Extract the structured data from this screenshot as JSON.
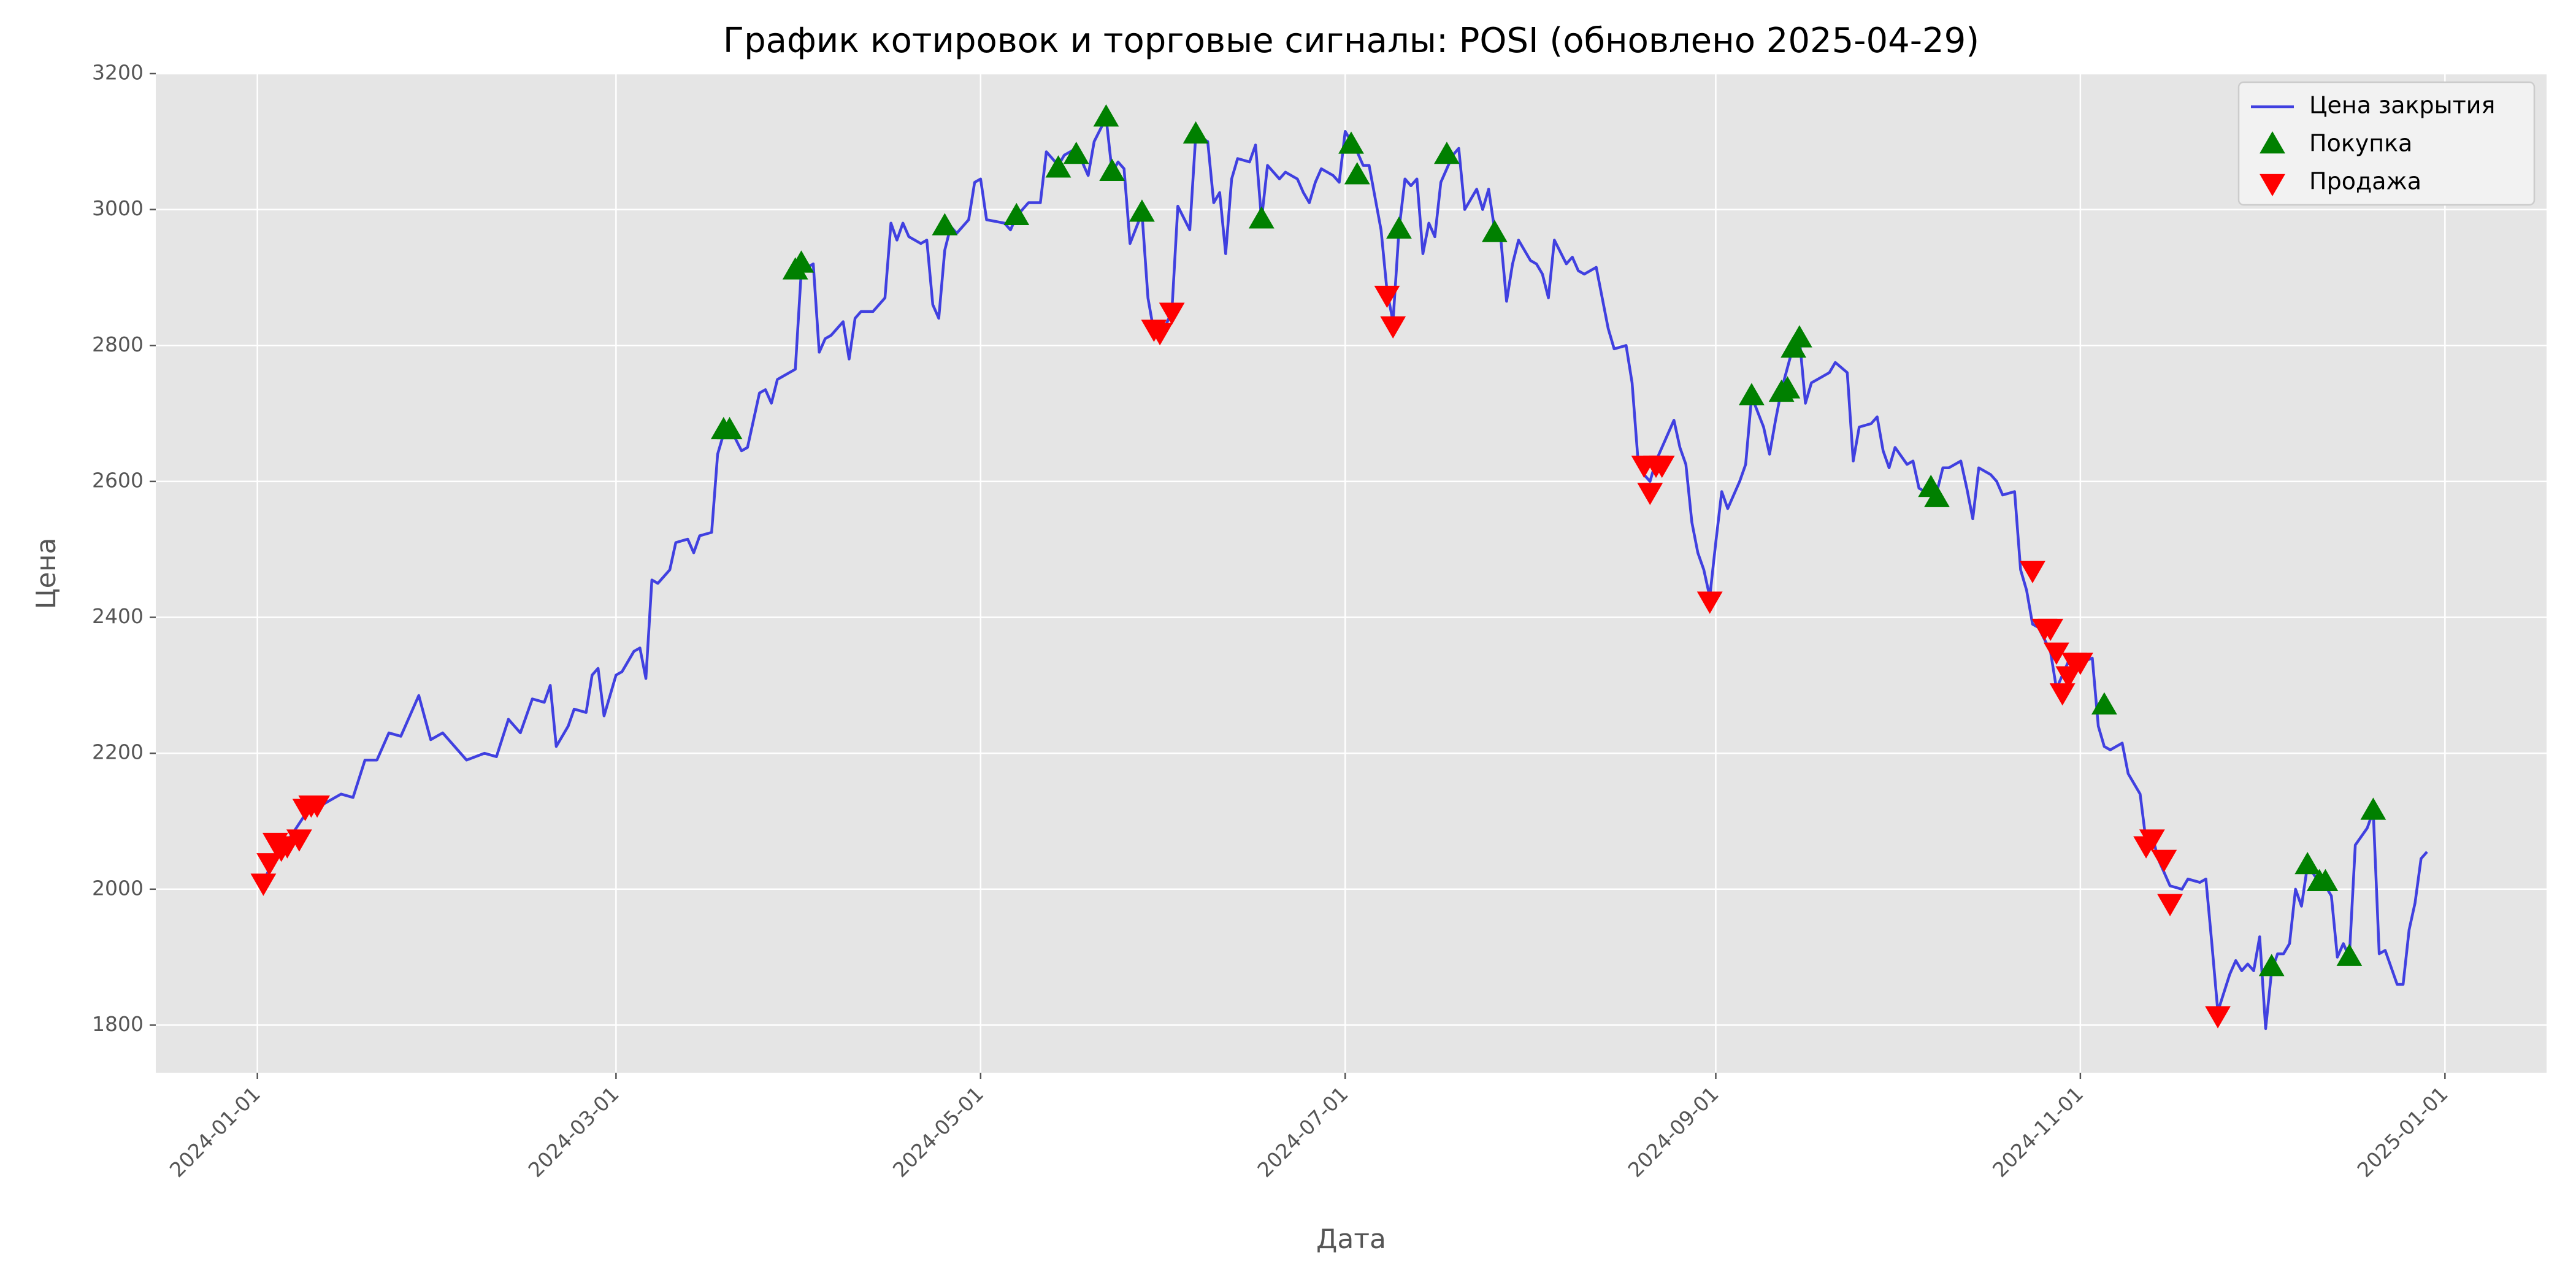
{
  "chart_data": {
    "type": "line",
    "title": "График котировок и торговые сигналы: POSI (обновлено 2025-04-29)",
    "x_label": "Дата",
    "y_label": "Цена",
    "xlim": [
      "2023-12-15",
      "2025-01-18"
    ],
    "xticks": [
      "2024-01-01",
      "2024-03-01",
      "2024-05-01",
      "2024-07-01",
      "2024-09-01",
      "2024-11-01",
      "2025-01-01"
    ],
    "ylim": [
      1730,
      3200
    ],
    "yticks": [
      1800,
      2000,
      2200,
      2400,
      2600,
      2800,
      3000,
      3200
    ],
    "grid": true,
    "legend": "upper right",
    "x": [
      "2024-01-02",
      "2024-01-04",
      "2024-01-06",
      "2024-01-09",
      "2024-01-12",
      "2024-01-15",
      "2024-01-17",
      "2024-01-19",
      "2024-01-21",
      "2024-01-23",
      "2024-01-25",
      "2024-01-27",
      "2024-01-28",
      "2024-01-30",
      "2024-02-01",
      "2024-02-03",
      "2024-02-05",
      "2024-02-08",
      "2024-02-10",
      "2024-02-12",
      "2024-02-14",
      "2024-02-16",
      "2024-02-18",
      "2024-02-19",
      "2024-02-20",
      "2024-02-22",
      "2024-02-23",
      "2024-02-25",
      "2024-02-26",
      "2024-02-27",
      "2024-02-28",
      "2024-03-01",
      "2024-03-02",
      "2024-03-04",
      "2024-03-05",
      "2024-03-06",
      "2024-03-07",
      "2024-03-08",
      "2024-03-10",
      "2024-03-11",
      "2024-03-13",
      "2024-03-14",
      "2024-03-15",
      "2024-03-17",
      "2024-03-18",
      "2024-03-19",
      "2024-03-20",
      "2024-03-22",
      "2024-03-23",
      "2024-03-25",
      "2024-03-26",
      "2024-03-27",
      "2024-03-28",
      "2024-03-30",
      "2024-03-31",
      "2024-04-01",
      "2024-04-03",
      "2024-04-04",
      "2024-04-05",
      "2024-04-06",
      "2024-04-08",
      "2024-04-09",
      "2024-04-10",
      "2024-04-11",
      "2024-04-13",
      "2024-04-15",
      "2024-04-16",
      "2024-04-17",
      "2024-04-18",
      "2024-04-19",
      "2024-04-21",
      "2024-04-22",
      "2024-04-23",
      "2024-04-24",
      "2024-04-25",
      "2024-04-26",
      "2024-04-27",
      "2024-04-29",
      "2024-04-30",
      "2024-05-01",
      "2024-05-02",
      "2024-05-05",
      "2024-05-06",
      "2024-05-07",
      "2024-05-09",
      "2024-05-11",
      "2024-05-12",
      "2024-05-14",
      "2024-05-15",
      "2024-05-17",
      "2024-05-19",
      "2024-05-20",
      "2024-05-22",
      "2024-05-23",
      "2024-05-24",
      "2024-05-25",
      "2024-05-26",
      "2024-05-28",
      "2024-05-29",
      "2024-05-30",
      "2024-05-31",
      "2024-06-01",
      "2024-06-02",
      "2024-06-03",
      "2024-06-05",
      "2024-06-06",
      "2024-06-08",
      "2024-06-09",
      "2024-06-10",
      "2024-06-11",
      "2024-06-12",
      "2024-06-13",
      "2024-06-15",
      "2024-06-16",
      "2024-06-17",
      "2024-06-18",
      "2024-06-20",
      "2024-06-21",
      "2024-06-23",
      "2024-06-24",
      "2024-06-25",
      "2024-06-26",
      "2024-06-27",
      "2024-06-29",
      "2024-06-30",
      "2024-07-01",
      "2024-07-03",
      "2024-07-04",
      "2024-07-05",
      "2024-07-07",
      "2024-07-08",
      "2024-07-09",
      "2024-07-10",
      "2024-07-11",
      "2024-07-12",
      "2024-07-13",
      "2024-07-14",
      "2024-07-15",
      "2024-07-16",
      "2024-07-17",
      "2024-07-19",
      "2024-07-20",
      "2024-07-21",
      "2024-07-23",
      "2024-07-24",
      "2024-07-25",
      "2024-07-26",
      "2024-07-27",
      "2024-07-28",
      "2024-07-29",
      "2024-07-30",
      "2024-08-01",
      "2024-08-02",
      "2024-08-03",
      "2024-08-04",
      "2024-08-05",
      "2024-08-07",
      "2024-08-08",
      "2024-08-09",
      "2024-08-10",
      "2024-08-12",
      "2024-08-13",
      "2024-08-14",
      "2024-08-15",
      "2024-08-17",
      "2024-08-18",
      "2024-08-19",
      "2024-08-20",
      "2024-08-21",
      "2024-08-22",
      "2024-08-24",
      "2024-08-25",
      "2024-08-26",
      "2024-08-27",
      "2024-08-28",
      "2024-08-29",
      "2024-08-30",
      "2024-08-31",
      "2024-09-01",
      "2024-09-02",
      "2024-09-03",
      "2024-09-05",
      "2024-09-06",
      "2024-09-07",
      "2024-09-09",
      "2024-09-10",
      "2024-09-11",
      "2024-09-12",
      "2024-09-14",
      "2024-09-15",
      "2024-09-16",
      "2024-09-17",
      "2024-09-18",
      "2024-09-20",
      "2024-09-21",
      "2024-09-23",
      "2024-09-24",
      "2024-09-25",
      "2024-09-27",
      "2024-09-28",
      "2024-09-29",
      "2024-09-30",
      "2024-10-01",
      "2024-10-03",
      "2024-10-04",
      "2024-10-05",
      "2024-10-07",
      "2024-10-08",
      "2024-10-09",
      "2024-10-10",
      "2024-10-12",
      "2024-10-13",
      "2024-10-14",
      "2024-10-15",
      "2024-10-17",
      "2024-10-18",
      "2024-10-19",
      "2024-10-21",
      "2024-10-22",
      "2024-10-23",
      "2024-10-24",
      "2024-10-25",
      "2024-10-27",
      "2024-10-28",
      "2024-10-29",
      "2024-10-30",
      "2024-10-31",
      "2024-11-03",
      "2024-11-04",
      "2024-11-05",
      "2024-11-06",
      "2024-11-08",
      "2024-11-09",
      "2024-11-11",
      "2024-11-12",
      "2024-11-13",
      "2024-11-14",
      "2024-11-16",
      "2024-11-18",
      "2024-11-19",
      "2024-11-21",
      "2024-11-22",
      "2024-11-23",
      "2024-11-24",
      "2024-11-26",
      "2024-11-27",
      "2024-11-28",
      "2024-11-29",
      "2024-11-30",
      "2024-12-01",
      "2024-12-02",
      "2024-12-03",
      "2024-12-04",
      "2024-12-05",
      "2024-12-06",
      "2024-12-07",
      "2024-12-08",
      "2024-12-09",
      "2024-12-11",
      "2024-12-12",
      "2024-12-13",
      "2024-12-14",
      "2024-12-15",
      "2024-12-16",
      "2024-12-17",
      "2024-12-19",
      "2024-12-20",
      "2024-12-21",
      "2024-12-22",
      "2024-12-24",
      "2024-12-25",
      "2024-12-26",
      "2024-12-27",
      "2024-12-28",
      "2024-12-29"
    ],
    "series": [
      {
        "name": "Цена закрытия",
        "type": "line",
        "color": "#4040e0",
        "values": [
          2010,
          2050,
          2070,
          2110,
          2125,
          2140,
          2135,
          2190,
          2190,
          2230,
          2225,
          2265,
          2285,
          2220,
          2230,
          2210,
          2190,
          2200,
          2195,
          2250,
          2230,
          2280,
          2275,
          2300,
          2210,
          2240,
          2265,
          2260,
          2315,
          2325,
          2255,
          2315,
          2320,
          2350,
          2355,
          2310,
          2455,
          2450,
          2470,
          2510,
          2515,
          2495,
          2520,
          2525,
          2640,
          2670,
          2680,
          2645,
          2650,
          2730,
          2735,
          2715,
          2750,
          2760,
          2765,
          2910,
          2920,
          2790,
          2810,
          2815,
          2835,
          2780,
          2840,
          2850,
          2850,
          2870,
          2980,
          2955,
          2980,
          2960,
          2950,
          2955,
          2860,
          2840,
          2940,
          2975,
          2965,
          2985,
          3040,
          3045,
          2985,
          2980,
          2970,
          2990,
          3010,
          3010,
          3085,
          3065,
          3080,
          3090,
          3050,
          3100,
          3135,
          3055,
          3070,
          3060,
          2950,
          2995,
          2870,
          2820,
          2805,
          2830,
          2850,
          3005,
          2970,
          3110,
          3100,
          3010,
          3025,
          2935,
          3045,
          3075,
          3070,
          3095,
          2985,
          3065,
          3045,
          3055,
          3045,
          3025,
          3010,
          3040,
          3060,
          3050,
          3040,
          3115,
          3085,
          3065,
          3065,
          2970,
          2880,
          2835,
          2970,
          3045,
          3035,
          3045,
          2935,
          2980,
          2960,
          3040,
          3080,
          3090,
          3000,
          3030,
          3000,
          3030,
          2970,
          2960,
          2865,
          2920,
          2955,
          2925,
          2920,
          2905,
          2870,
          2955,
          2920,
          2930,
          2910,
          2905,
          2915,
          2870,
          2825,
          2795,
          2800,
          2745,
          2630,
          2610,
          2600,
          2630,
          2670,
          2690,
          2650,
          2625,
          2540,
          2495,
          2470,
          2430,
          2510,
          2585,
          2560,
          2600,
          2625,
          2725,
          2680,
          2640,
          2690,
          2735,
          2800,
          2810,
          2715,
          2745,
          2750,
          2760,
          2775,
          2760,
          2630,
          2680,
          2685,
          2695,
          2645,
          2620,
          2650,
          2625,
          2630,
          2590,
          2580,
          2585,
          2620,
          2620,
          2630,
          2590,
          2545,
          2620,
          2610,
          2600,
          2580,
          2585,
          2470,
          2440,
          2390,
          2385,
          2350,
          2295,
          2315,
          2335,
          2330,
          2340,
          2240,
          2210,
          2205,
          2215,
          2170,
          2140,
          2070,
          2080,
          2045,
          2005,
          2000,
          2015,
          2010,
          2015,
          1920,
          1820,
          1875,
          1895,
          1880,
          1890,
          1880,
          1930,
          1795,
          1880,
          1905,
          1905,
          1920,
          2000,
          1975,
          2035,
          2010,
          2005,
          1990,
          1900,
          1920,
          1900,
          2065,
          2090,
          2115,
          1905,
          1910,
          1860,
          1860,
          1940,
          1980,
          2045,
          2055
        ]
      },
      {
        "name": "Покупка",
        "type": "scatter",
        "marker": "^",
        "color": "#008000",
        "x": [
          "2024-03-19",
          "2024-03-20",
          "2024-03-31",
          "2024-04-01",
          "2024-04-25",
          "2024-05-07",
          "2024-05-14",
          "2024-05-17",
          "2024-05-22",
          "2024-05-23",
          "2024-05-28",
          "2024-06-06",
          "2024-06-17",
          "2024-07-02",
          "2024-07-03",
          "2024-07-10",
          "2024-07-18",
          "2024-07-26",
          "2024-09-07",
          "2024-09-12",
          "2024-09-13",
          "2024-09-14",
          "2024-09-15",
          "2024-10-07",
          "2024-10-08",
          "2024-11-05",
          "2024-12-03",
          "2024-12-09",
          "2024-12-11",
          "2024-12-12",
          "2024-12-16",
          "2024-12-20"
        ],
        "values": [
          2675,
          2675,
          2910,
          2920,
          2975,
          2990,
          3060,
          3080,
          3135,
          3055,
          2995,
          3110,
          2985,
          3095,
          3050,
          2970,
          3080,
          2965,
          2725,
          2730,
          2735,
          2795,
          2810,
          2590,
          2575,
          2270,
          1885,
          2035,
          2010,
          2010,
          1900,
          2115
        ]
      },
      {
        "name": "Продажа",
        "type": "scatter",
        "marker": "v",
        "color": "#ff0000",
        "x": [
          "2024-01-02",
          "2024-01-03",
          "2024-01-04",
          "2024-01-05",
          "2024-01-06",
          "2024-01-08",
          "2024-01-09",
          "2024-01-10",
          "2024-01-11",
          "2024-05-30",
          "2024-05-31",
          "2024-06-02",
          "2024-07-08",
          "2024-07-09",
          "2024-08-20",
          "2024-08-21",
          "2024-08-22",
          "2024-08-23",
          "2024-08-31",
          "2024-10-24",
          "2024-10-26",
          "2024-10-27",
          "2024-10-28",
          "2024-10-29",
          "2024-10-30",
          "2024-10-31",
          "2024-11-01",
          "2024-11-12",
          "2024-11-13",
          "2024-11-15",
          "2024-11-16",
          "2024-11-24"
        ],
        "values": [
          2010,
          2040,
          2070,
          2060,
          2065,
          2075,
          2120,
          2125,
          2125,
          2825,
          2820,
          2850,
          2875,
          2830,
          2625,
          2585,
          2625,
          2625,
          2425,
          2470,
          2385,
          2385,
          2350,
          2290,
          2315,
          2335,
          2335,
          2065,
          2075,
          2045,
          1980,
          1815
        ]
      }
    ]
  }
}
